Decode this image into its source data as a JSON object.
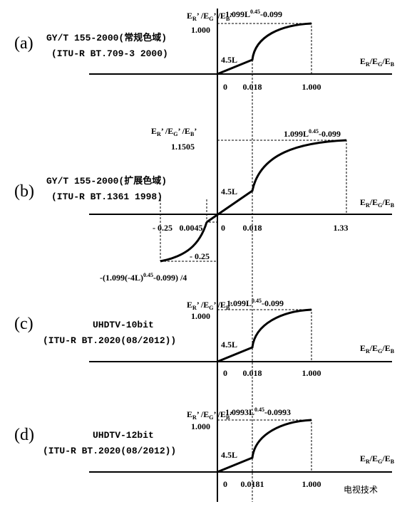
{
  "panels": [
    {
      "label": "(a)",
      "standard": [
        "GY/T 155-2000(常规色域)",
        "(ITU-R BT.709-3 2000)"
      ],
      "y_label": [
        "E",
        "R",
        "’ /E",
        "G",
        "’ /E",
        "B",
        "’"
      ],
      "formula": [
        "1.099L",
        "0.45",
        "-0.099"
      ],
      "y_max": "1.000",
      "linear": "4.5L",
      "x_label": [
        "E",
        "R",
        "/E",
        "G",
        "/E",
        "B"
      ],
      "x_ticks": [
        "0",
        "0.018",
        "1.000"
      ]
    },
    {
      "label": "(b)",
      "standard": [
        "GY/T 155-2000(扩展色域)",
        "(ITU-R BT.1361 1998)"
      ],
      "y_label": [
        "E",
        "R",
        "’ /E",
        "G",
        "’ /E",
        "B",
        "’"
      ],
      "formula": [
        "1.099L",
        "0.45",
        "-0.099"
      ],
      "y_max": "1.1505",
      "linear": "4.5L",
      "x_label": [
        "E",
        "R",
        "/E",
        "G",
        "/E",
        "B"
      ],
      "x_ticks": [
        "- 0.25",
        "0.0045",
        "0",
        "0.018",
        "1.33"
      ],
      "neg_value": "- 0.25",
      "neg_formula": [
        "-(1.099(-4L)",
        "0.45",
        "-0.099) /4"
      ]
    },
    {
      "label": "(c)",
      "standard": [
        "UHDTV-10bit",
        "(ITU-R BT.2020(08/2012))"
      ],
      "y_label": [
        "E",
        "R",
        "’ /E",
        "G",
        "’ /E",
        "B",
        "’"
      ],
      "formula": [
        "1.099L",
        "0.45",
        "-0.099"
      ],
      "y_max": "1.000",
      "linear": "4.5L",
      "x_label": [
        "E",
        "R",
        "/E",
        "G",
        "/E",
        "B"
      ],
      "x_ticks": [
        "0",
        "0.018",
        "1.000"
      ]
    },
    {
      "label": "(d)",
      "standard": [
        "UHDTV-12bit",
        "(ITU-R BT.2020(08/2012))"
      ],
      "y_label": [
        "E",
        "R",
        "’ /E",
        "G",
        "’ /E",
        "B",
        "’"
      ],
      "formula": [
        "1.0993L",
        "0.45",
        "-0.0993"
      ],
      "y_max": "1.000",
      "linear": "4.5L",
      "x_label": [
        "E",
        "R",
        "/E",
        "G",
        "/E",
        "B"
      ],
      "x_ticks": [
        "0",
        "0.0181",
        "1.000"
      ]
    }
  ],
  "watermark": "电视技术"
}
